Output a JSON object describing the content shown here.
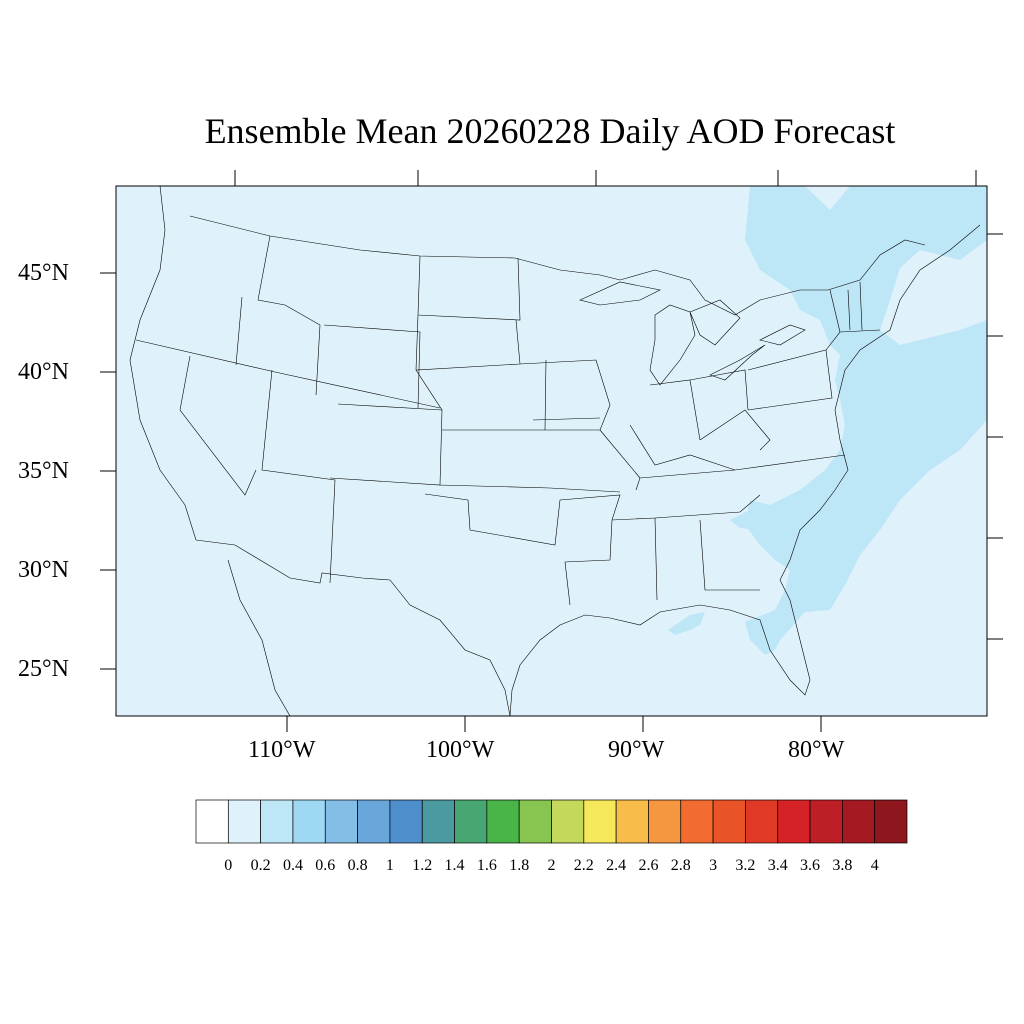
{
  "title": "Ensemble Mean 20260228 Daily AOD Forecast",
  "map": {
    "projection": "mercator",
    "lon_range": [
      -119,
      -71
    ],
    "lat_range": [
      22.5,
      49.1
    ],
    "latitude_labels": [
      "45°N",
      "40°N",
      "35°N",
      "30°N",
      "25°N"
    ],
    "longitude_labels": [
      "110°W",
      "100°W",
      "90°W",
      "80°W"
    ],
    "background_level": "0.0–0.2",
    "elevated_region": "Atlantic / East Coast plume 0.2–0.4"
  },
  "colorbar": {
    "labels": [
      "0",
      "0.2",
      "0.4",
      "0.6",
      "0.8",
      "1",
      "1.2",
      "1.4",
      "1.6",
      "1.8",
      "2",
      "2.2",
      "2.4",
      "2.6",
      "2.8",
      "3",
      "3.2",
      "3.4",
      "3.6",
      "3.8",
      "4"
    ],
    "colors": [
      "#ffffff",
      "#dff2fb",
      "#bde6f7",
      "#9ed8f3",
      "#84bde6",
      "#69a6da",
      "#4d8ecb",
      "#4b9aa0",
      "#47a672",
      "#49b548",
      "#87c550",
      "#c4d85c",
      "#f6e85b",
      "#f7bc4a",
      "#f59740",
      "#f26b30",
      "#ea5228",
      "#e03a26",
      "#d42226",
      "#be1e26",
      "#a51a22",
      "#8e161d"
    ]
  },
  "chart_data": {
    "type": "heatmap",
    "title": "Ensemble Mean 20260228 Daily AOD Forecast",
    "variable": "AOD",
    "color_levels": [
      0,
      0.2,
      0.4,
      0.6,
      0.8,
      1,
      1.2,
      1.4,
      1.6,
      1.8,
      2,
      2.2,
      2.4,
      2.6,
      2.8,
      3,
      3.2,
      3.4,
      3.6,
      3.8,
      4
    ],
    "xlabel": "",
    "ylabel": "",
    "x_ticks": [
      "110°W",
      "100°W",
      "90°W",
      "80°W"
    ],
    "y_ticks": [
      "45°N",
      "40°N",
      "35°N",
      "30°N",
      "25°N"
    ]
  }
}
